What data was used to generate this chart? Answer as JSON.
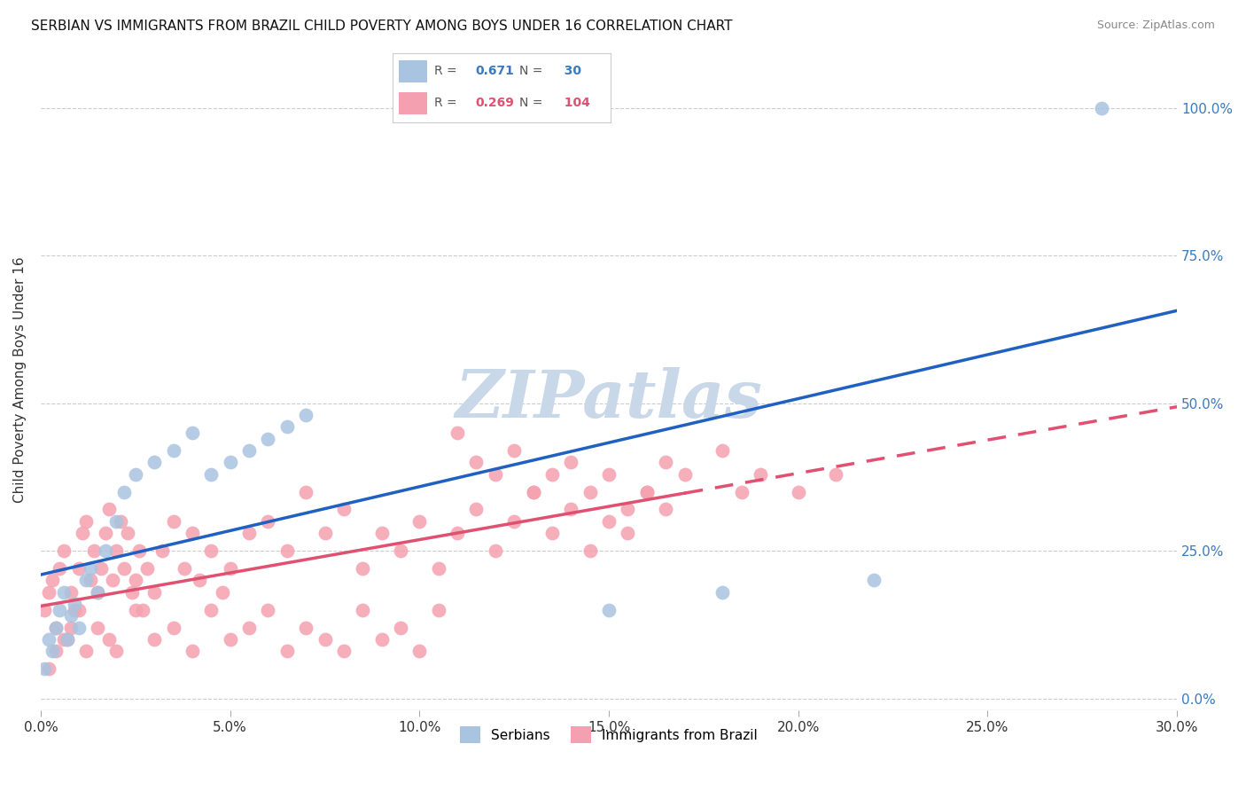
{
  "title": "SERBIAN VS IMMIGRANTS FROM BRAZIL CHILD POVERTY AMONG BOYS UNDER 16 CORRELATION CHART",
  "source": "Source: ZipAtlas.com",
  "ylabel": "Child Poverty Among Boys Under 16",
  "xlim": [
    0.0,
    0.3
  ],
  "ylim": [
    -0.02,
    1.1
  ],
  "serbian_R": 0.671,
  "serbian_N": 30,
  "brazil_R": 0.269,
  "brazil_N": 104,
  "serbian_color": "#a8c4e0",
  "brazil_color": "#f5a0b0",
  "serbian_line_color": "#2060c0",
  "brazil_line_color": "#e05070",
  "watermark": "ZIPatlas",
  "watermark_color": "#c8d8e8",
  "background_color": "#ffffff",
  "serbian_x": [
    0.001,
    0.002,
    0.003,
    0.004,
    0.005,
    0.006,
    0.007,
    0.008,
    0.009,
    0.01,
    0.012,
    0.013,
    0.015,
    0.017,
    0.02,
    0.022,
    0.025,
    0.03,
    0.035,
    0.04,
    0.045,
    0.05,
    0.055,
    0.06,
    0.065,
    0.07,
    0.15,
    0.18,
    0.22,
    0.28
  ],
  "serbian_y": [
    0.05,
    0.1,
    0.08,
    0.12,
    0.15,
    0.18,
    0.1,
    0.14,
    0.16,
    0.12,
    0.2,
    0.22,
    0.18,
    0.25,
    0.3,
    0.35,
    0.38,
    0.4,
    0.42,
    0.45,
    0.38,
    0.4,
    0.42,
    0.44,
    0.46,
    0.48,
    0.15,
    0.18,
    0.2,
    1.0
  ],
  "brazil_x": [
    0.001,
    0.002,
    0.003,
    0.004,
    0.005,
    0.006,
    0.007,
    0.008,
    0.009,
    0.01,
    0.011,
    0.012,
    0.013,
    0.014,
    0.015,
    0.016,
    0.017,
    0.018,
    0.019,
    0.02,
    0.021,
    0.022,
    0.023,
    0.024,
    0.025,
    0.026,
    0.027,
    0.028,
    0.03,
    0.032,
    0.035,
    0.038,
    0.04,
    0.042,
    0.045,
    0.048,
    0.05,
    0.055,
    0.06,
    0.065,
    0.07,
    0.075,
    0.08,
    0.085,
    0.09,
    0.095,
    0.1,
    0.105,
    0.11,
    0.115,
    0.12,
    0.125,
    0.13,
    0.135,
    0.14,
    0.145,
    0.15,
    0.155,
    0.16,
    0.165,
    0.002,
    0.004,
    0.006,
    0.008,
    0.01,
    0.012,
    0.015,
    0.018,
    0.02,
    0.025,
    0.03,
    0.035,
    0.04,
    0.045,
    0.05,
    0.055,
    0.06,
    0.065,
    0.07,
    0.075,
    0.08,
    0.085,
    0.09,
    0.095,
    0.1,
    0.105,
    0.11,
    0.115,
    0.12,
    0.125,
    0.13,
    0.135,
    0.14,
    0.145,
    0.15,
    0.155,
    0.16,
    0.165,
    0.17,
    0.18,
    0.185,
    0.19,
    0.2,
    0.21
  ],
  "brazil_y": [
    0.15,
    0.18,
    0.2,
    0.12,
    0.22,
    0.25,
    0.1,
    0.18,
    0.15,
    0.22,
    0.28,
    0.3,
    0.2,
    0.25,
    0.18,
    0.22,
    0.28,
    0.32,
    0.2,
    0.25,
    0.3,
    0.22,
    0.28,
    0.18,
    0.2,
    0.25,
    0.15,
    0.22,
    0.18,
    0.25,
    0.3,
    0.22,
    0.28,
    0.2,
    0.25,
    0.18,
    0.22,
    0.28,
    0.3,
    0.25,
    0.35,
    0.28,
    0.32,
    0.22,
    0.28,
    0.25,
    0.3,
    0.22,
    0.28,
    0.32,
    0.25,
    0.3,
    0.35,
    0.28,
    0.32,
    0.25,
    0.3,
    0.28,
    0.35,
    0.32,
    0.05,
    0.08,
    0.1,
    0.12,
    0.15,
    0.08,
    0.12,
    0.1,
    0.08,
    0.15,
    0.1,
    0.12,
    0.08,
    0.15,
    0.1,
    0.12,
    0.15,
    0.08,
    0.12,
    0.1,
    0.08,
    0.15,
    0.1,
    0.12,
    0.08,
    0.15,
    0.45,
    0.4,
    0.38,
    0.42,
    0.35,
    0.38,
    0.4,
    0.35,
    0.38,
    0.32,
    0.35,
    0.4,
    0.38,
    0.42,
    0.35,
    0.38,
    0.35,
    0.38
  ]
}
